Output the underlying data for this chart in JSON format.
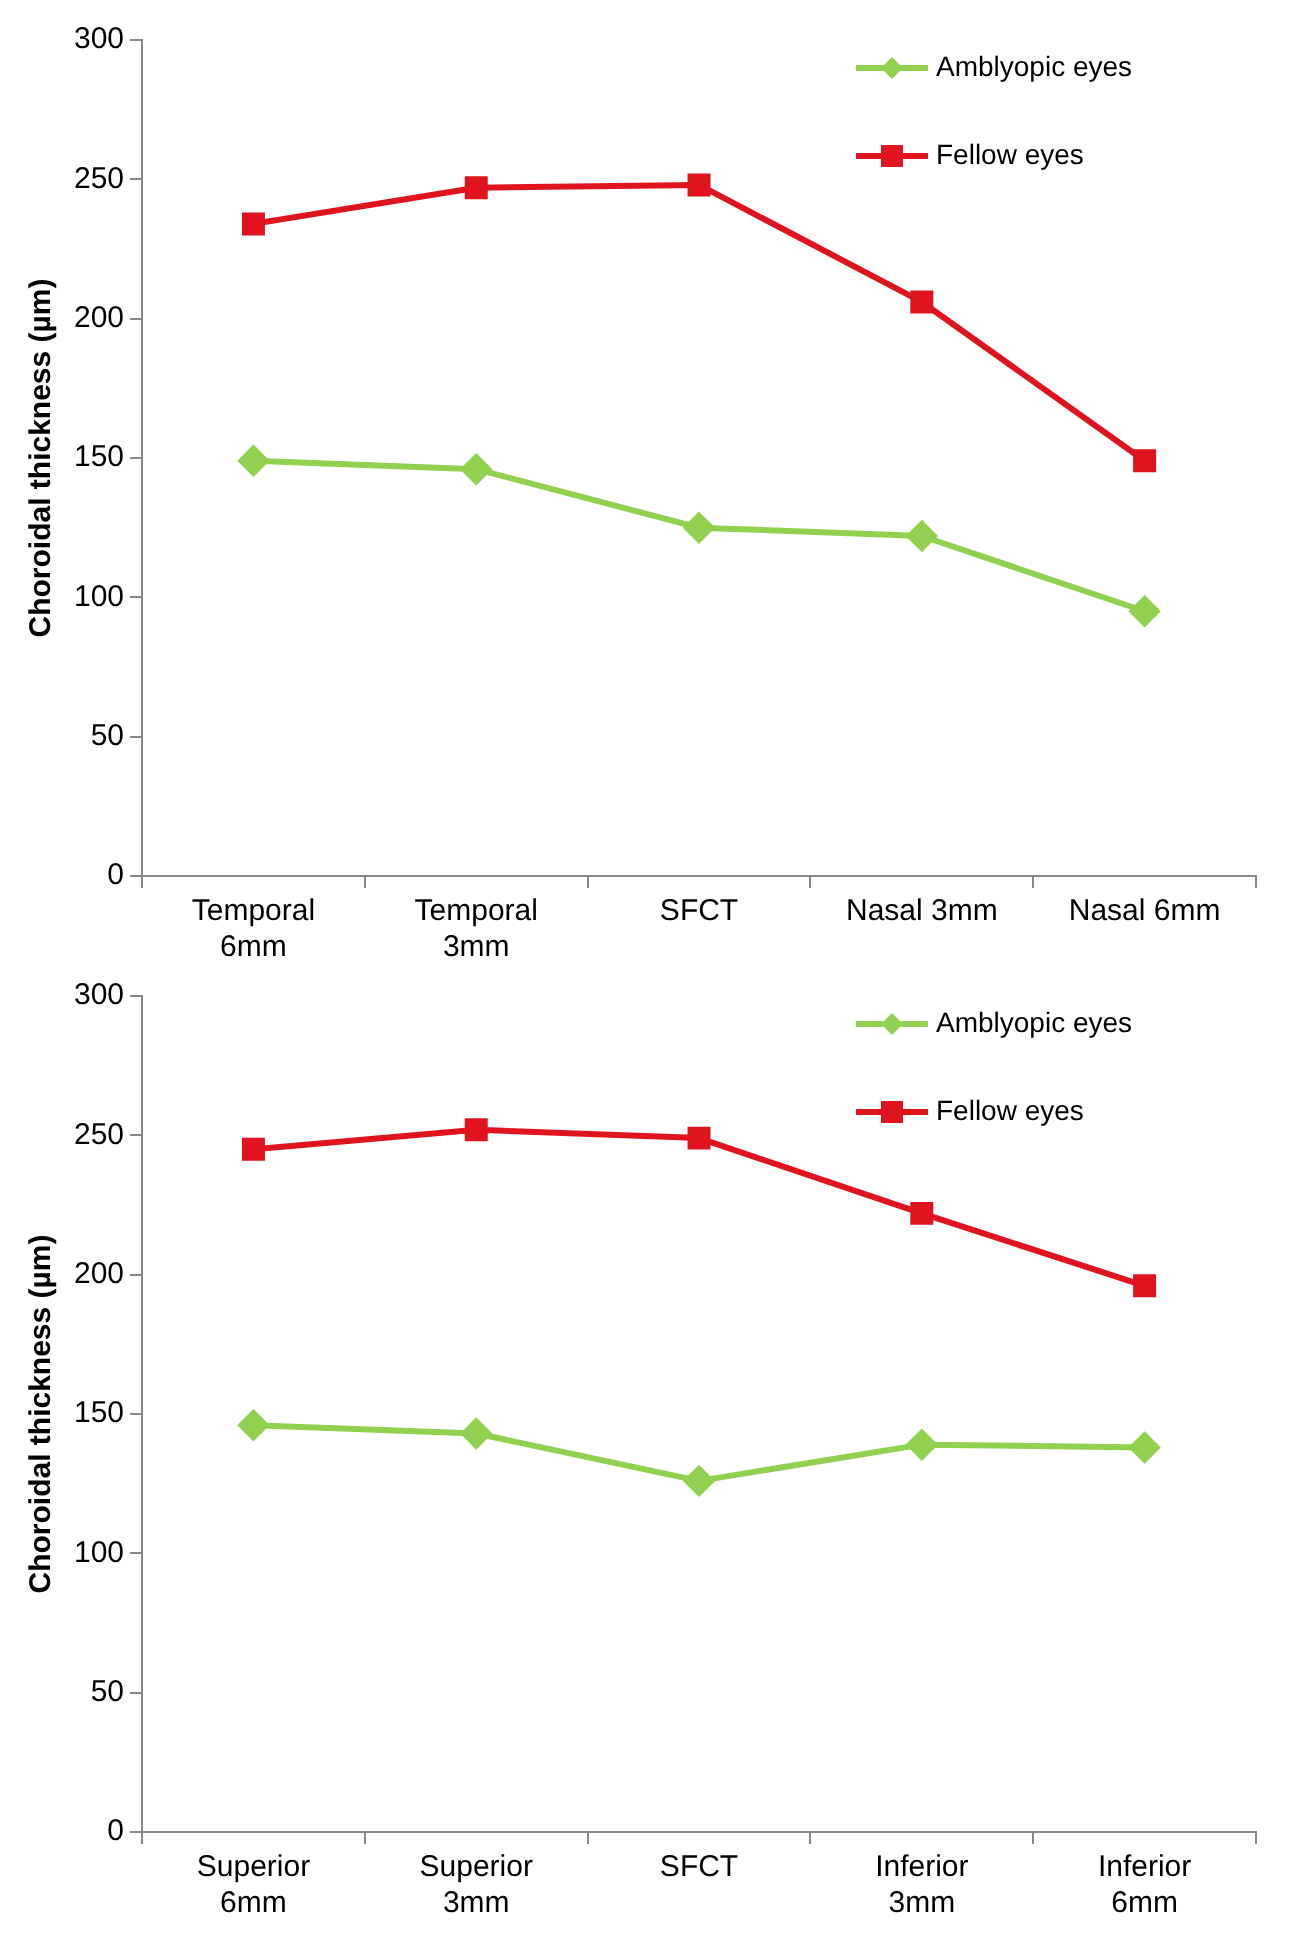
{
  "chart_data": [
    {
      "type": "line",
      "ylabel": "Choroidal thickness (µm)",
      "categories": [
        "Temporal\n6mm",
        "Temporal\n3mm",
        "SFCT",
        "Nasal 3mm",
        "Nasal 6mm"
      ],
      "ylim": [
        0,
        300
      ],
      "yticks": [
        0,
        50,
        100,
        150,
        200,
        250,
        300
      ],
      "grid": false,
      "legend": "top right",
      "series": [
        {
          "name": "Amblyopic eyes",
          "color": "#92d050",
          "marker": "diamond",
          "values": [
            149,
            146,
            125,
            122,
            95
          ]
        },
        {
          "name": "Fellow eyes",
          "color": "#e0141e",
          "marker": "square",
          "values": [
            234,
            247,
            248,
            206,
            149
          ]
        }
      ]
    },
    {
      "type": "line",
      "ylabel": "Choroidal thickness (µm)",
      "categories": [
        "Superior\n6mm",
        "Superior\n3mm",
        "SFCT",
        "Inferior\n3mm",
        "Inferior\n6mm"
      ],
      "ylim": [
        0,
        300
      ],
      "yticks": [
        0,
        50,
        100,
        150,
        200,
        250,
        300
      ],
      "grid": false,
      "legend": "top right",
      "series": [
        {
          "name": "Amblyopic eyes",
          "color": "#92d050",
          "marker": "diamond",
          "values": [
            146,
            143,
            126,
            139,
            138
          ]
        },
        {
          "name": "Fellow eyes",
          "color": "#e0141e",
          "marker": "square",
          "values": [
            245,
            252,
            249,
            222,
            196
          ]
        }
      ]
    }
  ]
}
